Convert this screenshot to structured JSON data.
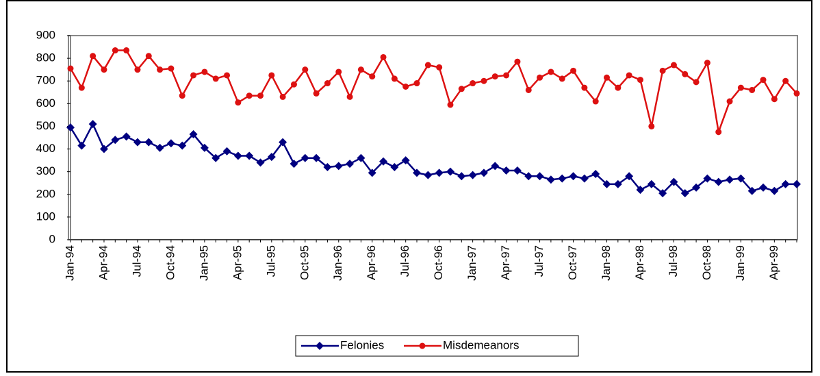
{
  "chart_data": {
    "type": "line",
    "categories": [
      "Jan-94",
      null,
      null,
      "Apr-94",
      null,
      null,
      "Jul-94",
      null,
      null,
      "Oct-94",
      null,
      null,
      "Jan-95",
      null,
      null,
      "Apr-95",
      null,
      null,
      "Jul-95",
      null,
      null,
      "Oct-95",
      null,
      null,
      "Jan-96",
      null,
      null,
      "Apr-96",
      null,
      null,
      "Jul-96",
      null,
      null,
      "Oct-96",
      null,
      null,
      "Jan-97",
      null,
      null,
      "Apr-97",
      null,
      null,
      "Jul-97",
      null,
      null,
      "Oct-97",
      null,
      null,
      "Jan-98",
      null,
      null,
      "Apr-98",
      null,
      null,
      "Jul-98",
      null,
      null,
      "Oct-98",
      null,
      null,
      "Jan-99",
      null,
      null,
      "Apr-99",
      null,
      null
    ],
    "series": [
      {
        "name": "Felonies",
        "color": "#000080",
        "marker": "diamond",
        "values": [
          495,
          415,
          510,
          400,
          440,
          455,
          430,
          430,
          405,
          425,
          415,
          465,
          405,
          360,
          390,
          370,
          370,
          340,
          365,
          430,
          335,
          360,
          360,
          320,
          325,
          335,
          360,
          295,
          345,
          320,
          350,
          295,
          285,
          295,
          300,
          280,
          285,
          295,
          325,
          305,
          305,
          280,
          280,
          265,
          270,
          280,
          270,
          290,
          245,
          245,
          280,
          220,
          245,
          205,
          255,
          205,
          230,
          270,
          255,
          265,
          270,
          215,
          230,
          215,
          245,
          245
        ]
      },
      {
        "name": "Misdemeanors",
        "color": "#dd1111",
        "marker": "circle",
        "values": [
          755,
          670,
          810,
          750,
          835,
          835,
          750,
          810,
          750,
          755,
          635,
          725,
          740,
          710,
          725,
          605,
          635,
          635,
          725,
          630,
          685,
          750,
          645,
          690,
          740,
          630,
          750,
          720,
          805,
          710,
          675,
          690,
          770,
          760,
          595,
          665,
          690,
          700,
          720,
          725,
          785,
          660,
          715,
          740,
          710,
          745,
          670,
          610,
          715,
          670,
          725,
          705,
          500,
          745,
          770,
          730,
          695,
          780,
          475,
          610,
          670,
          660,
          705,
          620,
          700,
          645
        ]
      }
    ],
    "ylim": [
      0,
      900
    ],
    "yticks": [
      0,
      100,
      200,
      300,
      400,
      500,
      600,
      700,
      800,
      900
    ],
    "legend": "bottom"
  }
}
